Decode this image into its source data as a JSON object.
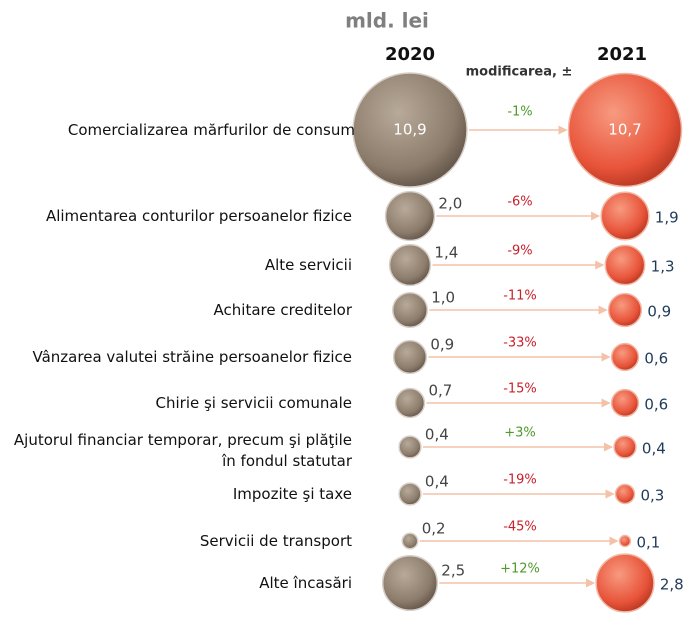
{
  "chart_data": {
    "type": "bubble-comparison",
    "title": "mld. lei",
    "categories": [
      "Comercializarea mărfurilor de consum",
      "Alimentarea conturilor persoanelor fizice",
      "Alte servicii",
      "Achitare creditelor",
      "Vânzarea valutei străine persoanelor fizice",
      "Chirie şi servicii comunale",
      "Ajutorul financiar temporar, precum şi plăţile în fondul statutar",
      "Impozite şi taxe",
      "Servicii de transport",
      "Alte încasări"
    ],
    "series": [
      {
        "name": "2020",
        "color": "#8c7c6c",
        "values": [
          10.9,
          2.0,
          1.4,
          1.0,
          0.9,
          0.7,
          0.4,
          0.4,
          0.2,
          2.5
        ],
        "value_labels": [
          "10,9",
          "2,0",
          "1,4",
          "1,0",
          "0,9",
          "0,7",
          "0,4",
          "0,4",
          "0,2",
          "2,5"
        ]
      },
      {
        "name": "2021",
        "color": "#e8543a",
        "values": [
          10.7,
          1.9,
          1.3,
          0.9,
          0.6,
          0.6,
          0.4,
          0.3,
          0.1,
          2.8
        ],
        "value_labels": [
          "10,7",
          "1,9",
          "1,3",
          "0,9",
          "0,6",
          "0,6",
          "0,4",
          "0,3",
          "0,1",
          "2,8"
        ]
      }
    ],
    "changes": {
      "name": "modificarea, ±",
      "values": [
        -1,
        -6,
        -9,
        -11,
        -33,
        -15,
        3,
        -19,
        -45,
        12
      ],
      "value_labels": [
        "-1%",
        "-6%",
        "-9%",
        "-11%",
        "-33%",
        "-15%",
        "+3%",
        "-19%",
        "-45%",
        "+12%"
      ],
      "colors": [
        "#4e9a2a",
        "#c8202a",
        "#c8202a",
        "#c8202a",
        "#c8202a",
        "#c8202a",
        "#4e9a2a",
        "#c8202a",
        "#c8202a",
        "#4e9a2a"
      ]
    }
  }
}
